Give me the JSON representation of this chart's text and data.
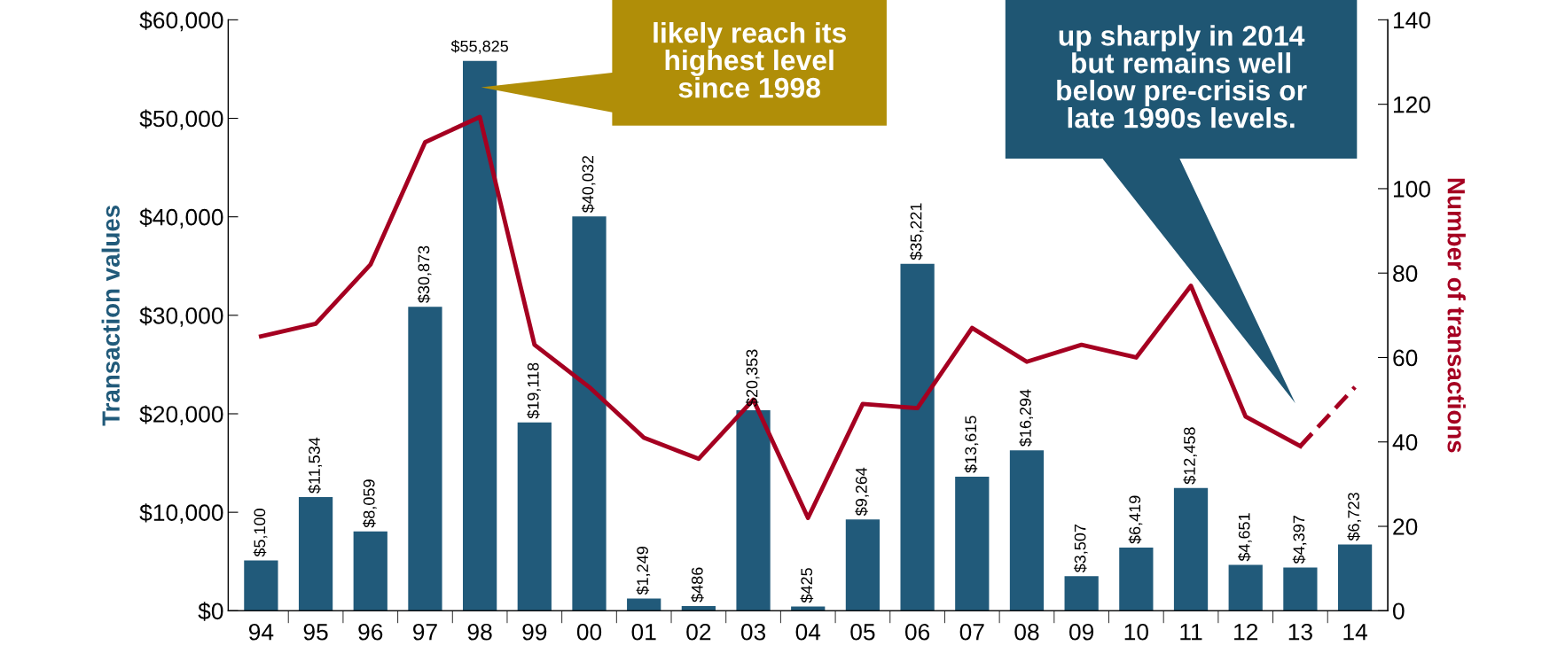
{
  "chart_data": {
    "type": "bar",
    "categories": [
      "94",
      "95",
      "96",
      "97",
      "98",
      "99",
      "00",
      "01",
      "02",
      "03",
      "04",
      "05",
      "06",
      "07",
      "08",
      "09",
      "10",
      "11",
      "12",
      "13",
      "14"
    ],
    "series": [
      {
        "color": "#215a7a",
        "values": [
          5100,
          11534,
          8059,
          30873,
          55825,
          19118,
          40032,
          1249,
          486,
          20353,
          425,
          9264,
          35221,
          13615,
          16294,
          3507,
          6419,
          12458,
          4651,
          4397,
          6723
        ],
        "value_labels": [
          "$5,100",
          "$11,534",
          "$8,059",
          "$30,873",
          "$55,825",
          "$19,118",
          "$40,032",
          "$1,249",
          "$486",
          "$20,353",
          "$425",
          "$9,264",
          "$35,221",
          "$13,615",
          "$16,294",
          "$3,507",
          "$6,419",
          "$12,458",
          "$4,651",
          "$4,397",
          "$6,723"
        ]
      },
      {
        "type": "line",
        "axis": "y2",
        "color": "#a50021",
        "line_style": "solid",
        "values": [
          65,
          68,
          82,
          111,
          117,
          63,
          53,
          41,
          36,
          50,
          22,
          49,
          48,
          67,
          59,
          63,
          60,
          77,
          46,
          39,
          null
        ]
      },
      {
        "type": "line",
        "axis": "y2",
        "color": "#a50021",
        "line_style": "dashed",
        "values": [
          null,
          null,
          null,
          null,
          null,
          null,
          null,
          null,
          null,
          null,
          null,
          null,
          null,
          null,
          null,
          null,
          null,
          null,
          null,
          39,
          53
        ]
      }
    ],
    "ylabel": "Transaction values",
    "y2label": "Number of transactions",
    "ylim": [
      0,
      60000
    ],
    "yticks": [
      {
        "value": 0,
        "label": "$0"
      },
      {
        "value": 10000,
        "label": "$10,000"
      },
      {
        "value": 20000,
        "label": "$20,000"
      },
      {
        "value": 30000,
        "label": "$30,000"
      },
      {
        "value": 40000,
        "label": "$40,000"
      },
      {
        "value": 50000,
        "label": "$50,000"
      },
      {
        "value": 60000,
        "label": "$60,000"
      }
    ],
    "y2lim": [
      0,
      140
    ],
    "y2ticks": [
      0,
      20,
      40,
      60,
      80,
      100,
      120,
      140
    ],
    "annotations": [
      "likely reach its\nhighest level\nsince 1998",
      "up sharply in 2014\nbut remains well\nbelow pre-crisis or\nlate 1990s levels."
    ],
    "grid": false,
    "legend": false
  }
}
